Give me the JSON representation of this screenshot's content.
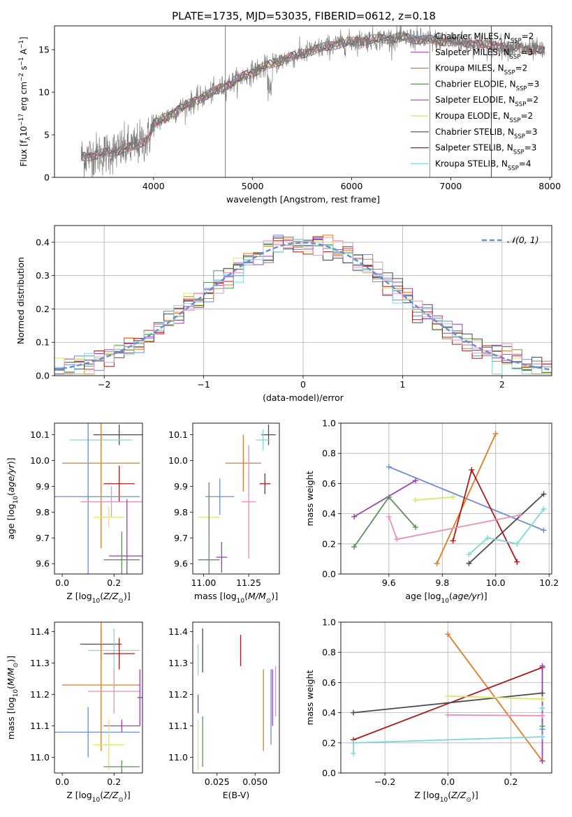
{
  "title": "PLATE=1735, MJD=53035, FIBERID=0612, z=0.18",
  "colors": [
    "#6a8bd6",
    "#e07b1f",
    "#5f8f5f",
    "#a03cb4",
    "#d8e86a",
    "#4a4a4a",
    "#b01818",
    "#e890b8",
    "#7fd8d8",
    "#7a7a7a"
  ],
  "chart_data": [
    {
      "id": "spectrum",
      "type": "line",
      "xlabel": "wavelength [Angstrom, rest frame]",
      "ylabel": "Flux [f_λ10^-17 erg cm^-2 s^-1 A^-1]",
      "xlim": [
        3000,
        8020
      ],
      "ylim": [
        0,
        17.8
      ],
      "xticks": [
        4000,
        5000,
        6000,
        7000,
        8000
      ],
      "yticks": [
        0,
        5,
        10,
        15
      ],
      "grid": false,
      "legend_placement": "upper-right",
      "data_range": [
        3270,
        7950
      ],
      "continuum_anchors": {
        "x": [
          3270,
          3500,
          3800,
          3950,
          4000,
          4300,
          4700,
          5000,
          5300,
          5600,
          5900,
          6200,
          6500,
          6800,
          7100,
          7400,
          7700,
          7950
        ],
        "y": [
          2.4,
          2.8,
          3.6,
          4.6,
          6.2,
          8.3,
          10.6,
          12.4,
          13.8,
          14.9,
          15.8,
          16.2,
          16.4,
          16.1,
          15.9,
          15.5,
          15.2,
          14.8
        ]
      },
      "vertical_lines": [
        {
          "x": 4725,
          "color": "#7a7a7a"
        },
        {
          "x": 6790,
          "color": "#e07b1f"
        },
        {
          "x": 7410,
          "color": "#b01818"
        }
      ],
      "legend": [
        {
          "label": "Chabrier MILES, N",
          "sub": "SSP",
          "suffix": "=2",
          "color": "#6a8bd6"
        },
        {
          "label": "Salpeter MILES, N",
          "sub": "SSP",
          "suffix": "=3",
          "color": "#a03cb4"
        },
        {
          "label": "Kroupa MILES, N",
          "sub": "SSP",
          "suffix": "=2",
          "color": "#e07b1f"
        },
        {
          "label": "Chabrier ELODIE, N",
          "sub": "SSP",
          "suffix": "=3",
          "color": "#5f8f5f"
        },
        {
          "label": "Salpeter ELODIE, N",
          "sub": "SSP",
          "suffix": "=2",
          "color": "#a03cb4"
        },
        {
          "label": "Kroupa ELODIE, N",
          "sub": "SSP",
          "suffix": "=2",
          "color": "#d8e86a"
        },
        {
          "label": "Chabrier STELIB, N",
          "sub": "SSP",
          "suffix": "=3",
          "color": "#4a4a4a"
        },
        {
          "label": "Salpeter STELIB, N",
          "sub": "SSP",
          "suffix": "=3",
          "color": "#b01818"
        },
        {
          "label": "Kroupa STELIB, N",
          "sub": "SSP",
          "suffix": "=4",
          "color": "#7fd8d8"
        }
      ]
    },
    {
      "id": "residuals",
      "type": "histogram",
      "xlabel": "(data-model)/error",
      "ylabel": "Normed distribution",
      "xlim": [
        -2.5,
        2.5
      ],
      "ylim": [
        0,
        0.45
      ],
      "xticks": [
        -2,
        -1,
        0,
        1,
        2
      ],
      "yticks": [
        0.0,
        0.1,
        0.2,
        0.3,
        0.4
      ],
      "grid": true,
      "bin_width": 0.1,
      "legend": [
        {
          "label": "𝒩(0, 1)",
          "color": "#6a8bd6",
          "style": "dashed"
        }
      ],
      "gaussian": {
        "mean": 0,
        "sigma": 1
      }
    },
    {
      "id": "age_vs_Z",
      "type": "errorbar",
      "xlabel": "Z [log10(Z/Z⊙)]",
      "ylabel": "age [log10(age/yr)]",
      "xlim": [
        -0.03,
        0.31
      ],
      "ylim": [
        9.56,
        10.145
      ],
      "xticks": [
        0.0,
        0.2
      ],
      "yticks": [
        9.6,
        9.7,
        9.8,
        9.9,
        10.0,
        10.1
      ],
      "grid": false,
      "points": [
        {
          "x": 0.22,
          "xerr": 0.1,
          "y": 10.1,
          "yerr": 0.04,
          "color": "#4a4a4a"
        },
        {
          "x": 0.15,
          "xerr": 0.12,
          "y": 10.08,
          "yerr": 0.03,
          "color": "#7fd8d8"
        },
        {
          "x": 0.15,
          "xerr": 0.15,
          "y": 9.99,
          "yerr": 0.33,
          "color": "#e07b1f"
        },
        {
          "x": 0.22,
          "xerr": 0.06,
          "y": 9.91,
          "yerr": 0.07,
          "color": "#b01818"
        },
        {
          "x": 0.1,
          "xerr": 0.2,
          "y": 9.86,
          "yerr": 0.3,
          "color": "#6a8bd6"
        },
        {
          "x": 0.19,
          "xerr": 0.12,
          "y": 9.84,
          "yerr": 0.06,
          "color": "#e890b8"
        },
        {
          "x": 0.18,
          "xerr": 0.06,
          "y": 9.78,
          "yerr": 0.04,
          "color": "#d8e86a"
        },
        {
          "x": 0.25,
          "xerr": 0.07,
          "y": 9.63,
          "yerr": 0.22,
          "color": "#a03cb4"
        },
        {
          "x": 0.23,
          "xerr": 0.07,
          "y": 9.615,
          "yerr": 0.11,
          "color": "#5f8f5f"
        }
      ]
    },
    {
      "id": "age_vs_mass",
      "type": "errorbar",
      "xlabel": "mass [log10(M/M⊙)]",
      "xlim": [
        10.94,
        11.42
      ],
      "ylim": [
        9.56,
        10.145
      ],
      "xticks": [
        11.0,
        11.25
      ],
      "yticks": [
        9.6,
        9.7,
        9.8,
        9.9,
        10.0,
        10.1
      ],
      "grid": false,
      "points": [
        {
          "x": 11.36,
          "xerr": 0.04,
          "y": 10.1,
          "yerr": 0.04,
          "color": "#4a4a4a"
        },
        {
          "x": 11.33,
          "xerr": 0.04,
          "y": 10.08,
          "yerr": 0.04,
          "color": "#7fd8d8"
        },
        {
          "x": 11.22,
          "xerr": 0.1,
          "y": 9.99,
          "yerr": 0.11,
          "color": "#e07b1f"
        },
        {
          "x": 11.34,
          "xerr": 0.03,
          "y": 9.91,
          "yerr": 0.04,
          "color": "#b01818"
        },
        {
          "x": 11.09,
          "xerr": 0.08,
          "y": 9.86,
          "yerr": 0.07,
          "color": "#6a8bd6"
        },
        {
          "x": 11.25,
          "xerr": 0.04,
          "y": 9.84,
          "yerr": 0.22,
          "color": "#e890b8"
        },
        {
          "x": 11.03,
          "xerr": 0.06,
          "y": 9.78,
          "yerr": 0.09,
          "color": "#d8e86a"
        },
        {
          "x": 11.1,
          "xerr": 0.03,
          "y": 9.625,
          "yerr": 0.06,
          "color": "#a03cb4"
        },
        {
          "x": 11.03,
          "xerr": 0.06,
          "y": 9.615,
          "yerr": 0.3,
          "color": "#5f8f5f"
        }
      ]
    },
    {
      "id": "weight_vs_age",
      "type": "line",
      "xlabel": "age [log10(age/yr)]",
      "ylabel": "mass weight",
      "xlim": [
        9.42,
        10.21
      ],
      "ylim": [
        0,
        1
      ],
      "xticks": [
        9.6,
        9.8,
        10.0,
        10.2
      ],
      "yticks": [
        0.0,
        0.2,
        0.4,
        0.6,
        0.8,
        1.0
      ],
      "grid": true,
      "series": [
        {
          "color": "#6a8bd6",
          "x": [
            9.6,
            10.18
          ],
          "y": [
            0.71,
            0.29
          ]
        },
        {
          "color": "#e07b1f",
          "x": [
            9.78,
            10.0
          ],
          "y": [
            0.07,
            0.93
          ]
        },
        {
          "color": "#5f8f5f",
          "x": [
            9.47,
            9.6,
            9.7
          ],
          "y": [
            0.18,
            0.51,
            0.31
          ]
        },
        {
          "color": "#a03cb4",
          "x": [
            9.47,
            9.7
          ],
          "y": [
            0.38,
            0.62
          ]
        },
        {
          "color": "#d8e86a",
          "x": [
            9.7,
            9.84
          ],
          "y": [
            0.49,
            0.51
          ]
        },
        {
          "color": "#4a4a4a",
          "x": [
            9.9,
            10.18
          ],
          "y": [
            0.07,
            0.53
          ]
        },
        {
          "color": "#b01818",
          "x": [
            9.84,
            9.91,
            10.08
          ],
          "y": [
            0.22,
            0.69,
            0.08
          ]
        },
        {
          "color": "#e890b8",
          "x": [
            9.6,
            9.63,
            10.09
          ],
          "y": [
            0.38,
            0.23,
            0.39
          ]
        },
        {
          "color": "#7fd8d8",
          "x": [
            9.9,
            9.97,
            10.08,
            10.18
          ],
          "y": [
            0.13,
            0.24,
            0.2,
            0.43
          ]
        }
      ]
    },
    {
      "id": "mass_vs_Z",
      "type": "errorbar",
      "xlabel": "Z [log10(Z/Z⊙)]",
      "ylabel": "mass [log10(M/M⊙)]",
      "xlim": [
        -0.03,
        0.31
      ],
      "ylim": [
        10.95,
        11.43
      ],
      "xticks": [
        0.0,
        0.2
      ],
      "yticks": [
        11.0,
        11.1,
        11.2,
        11.3,
        11.4
      ],
      "grid": false,
      "points": [
        {
          "x": 0.15,
          "xerr": 0.08,
          "y": 11.36,
          "yerr": 0.05,
          "color": "#4a4a4a"
        },
        {
          "x": 0.2,
          "xerr": 0.1,
          "y": 11.34,
          "yerr": 0.07,
          "color": "#7fd8d8"
        },
        {
          "x": 0.22,
          "xerr": 0.06,
          "y": 11.33,
          "yerr": 0.05,
          "color": "#b01818"
        },
        {
          "x": 0.15,
          "xerr": 0.15,
          "y": 11.23,
          "yerr": 0.21,
          "color": "#e07b1f"
        },
        {
          "x": 0.2,
          "xerr": 0.1,
          "y": 11.21,
          "yerr": 0.07,
          "color": "#e890b8"
        },
        {
          "x": 0.3,
          "xerr": 0.01,
          "y": 11.19,
          "yerr": 0.09,
          "color": "#a03cb4"
        },
        {
          "x": 0.1,
          "xerr": 0.2,
          "y": 11.08,
          "yerr": 0.08,
          "color": "#6a8bd6"
        },
        {
          "x": 0.23,
          "xerr": 0.07,
          "y": 11.1,
          "yerr": 0.02,
          "color": "#a03cb4"
        },
        {
          "x": 0.18,
          "xerr": 0.06,
          "y": 11.04,
          "yerr": 0.08,
          "color": "#d8e86a"
        },
        {
          "x": 0.23,
          "xerr": 0.07,
          "y": 10.97,
          "yerr": 0.02,
          "color": "#5f8f5f"
        }
      ]
    },
    {
      "id": "mass_vs_ebv",
      "type": "errorbar",
      "xlabel": "E(B-V)",
      "xlim": [
        0.009,
        0.066
      ],
      "ylim": [
        10.95,
        11.43
      ],
      "xticks": [
        0.025,
        0.05
      ],
      "yticks": [
        11.0,
        11.1,
        11.2,
        11.3,
        11.4
      ],
      "grid": false,
      "points": [
        {
          "x": 0.0155,
          "xerr": 0,
          "y": 11.34,
          "yerr": 0.07,
          "color": "#4a4a4a"
        },
        {
          "x": 0.0125,
          "xerr": 0,
          "y": 11.31,
          "yerr": 0.05,
          "color": "#7fd8d8"
        },
        {
          "x": 0.0405,
          "xerr": 0,
          "y": 11.34,
          "yerr": 0.05,
          "color": "#b01818"
        },
        {
          "x": 0.0555,
          "xerr": 0,
          "y": 11.15,
          "yerr": 0.13,
          "color": "#e07b1f"
        },
        {
          "x": 0.0635,
          "xerr": 0,
          "y": 11.21,
          "yerr": 0.08,
          "color": "#e890b8"
        },
        {
          "x": 0.0605,
          "xerr": 0,
          "y": 11.16,
          "yerr": 0.12,
          "color": "#6a8bd6"
        },
        {
          "x": 0.0615,
          "xerr": 0,
          "y": 11.19,
          "yerr": 0.09,
          "color": "#a03cb4"
        },
        {
          "x": 0.0125,
          "xerr": 0,
          "y": 11.17,
          "yerr": 0.03,
          "color": "#a03cb4"
        },
        {
          "x": 0.0125,
          "xerr": 0,
          "y": 11.04,
          "yerr": 0.08,
          "color": "#d8e86a"
        },
        {
          "x": 0.0155,
          "xerr": 0,
          "y": 11.05,
          "yerr": 0.08,
          "color": "#5f8f5f"
        }
      ]
    },
    {
      "id": "weight_vs_Z",
      "type": "line",
      "xlabel": "Z [log10(Z/Z⊙)]",
      "ylabel": "mass weight",
      "xlim": [
        -0.34,
        0.33
      ],
      "ylim": [
        0,
        1
      ],
      "xticks": [
        -0.2,
        0.0,
        0.2
      ],
      "yticks": [
        0.0,
        0.2,
        0.4,
        0.6,
        0.8,
        1.0
      ],
      "grid": true,
      "series": [
        {
          "color": "#e07b1f",
          "x": [
            0.0,
            0.3
          ],
          "y": [
            0.92,
            0.08
          ]
        },
        {
          "color": "#b01818",
          "x": [
            -0.3,
            0.3
          ],
          "y": [
            0.22,
            0.7
          ]
        },
        {
          "color": "#4a4a4a",
          "x": [
            -0.3,
            0.3
          ],
          "y": [
            0.4,
            0.53
          ]
        },
        {
          "color": "#d8e86a",
          "x": [
            0.0,
            0.3
          ],
          "y": [
            0.51,
            0.49
          ]
        },
        {
          "color": "#e890b8",
          "x": [
            0.0,
            0.3
          ],
          "y": [
            0.385,
            0.38
          ]
        },
        {
          "color": "#7fd8d8",
          "x": [
            -0.3,
            -0.3,
            0.3,
            0.3
          ],
          "y": [
            0.13,
            0.2,
            0.24,
            0.43
          ]
        },
        {
          "color": "#a03cb4",
          "x": [
            0.3,
            0.3
          ],
          "y": [
            0.71,
            0.08
          ]
        },
        {
          "color": "#6a8bd6",
          "x": [
            0.3
          ],
          "y": [
            0.29
          ]
        },
        {
          "color": "#5f8f5f",
          "x": [
            0.3
          ],
          "y": [
            0.31
          ]
        }
      ]
    }
  ]
}
